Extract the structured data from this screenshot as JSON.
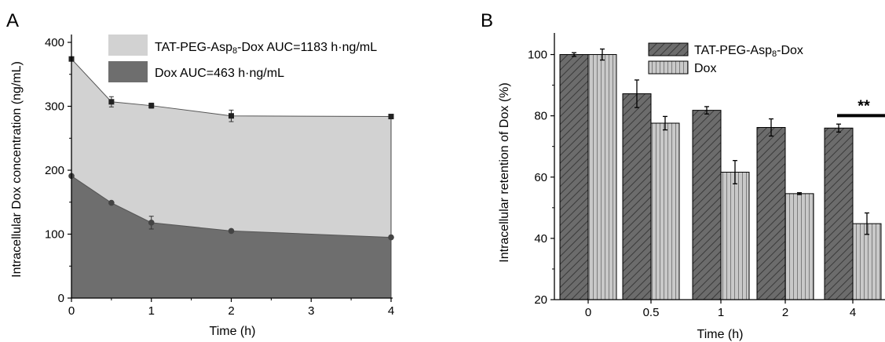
{
  "colors": {
    "area_tat": "#d2d2d2",
    "area_dox": "#6e6e6e",
    "bar_tat": "#6c6c6c",
    "bar_dox": "#c9c9c9",
    "axis": "#000000"
  },
  "chart_data": [
    {
      "panel_label": "A",
      "type": "area",
      "xlabel": "Time (h)",
      "ylabel": "Intracellular Dox concentration (ng/mL)",
      "xlim": [
        0,
        4
      ],
      "ylim": [
        0,
        400
      ],
      "xticks": [
        "0",
        "1",
        "2",
        "3",
        "4"
      ],
      "yticks": [
        "0",
        "100",
        "200",
        "300",
        "400"
      ],
      "x": [
        0,
        0.5,
        1,
        2,
        4
      ],
      "legend_position": "top-center",
      "series": [
        {
          "name": "TAT-PEG-Asp8-Dox",
          "legend_prefix": "TAT-PEG-Asp",
          "legend_sub": "8",
          "legend_suffix": "-Dox  AUC=1183 h·ng/mL",
          "values": [
            374,
            307,
            301,
            285,
            284
          ],
          "errors": [
            0,
            8,
            4,
            9,
            0
          ],
          "marker": "square"
        },
        {
          "name": "Dox",
          "legend_prefix": "Dox  AUC=463 h·ng/mL",
          "legend_sub": "",
          "legend_suffix": "",
          "values": [
            191,
            149,
            118,
            105,
            95
          ],
          "errors": [
            0,
            0,
            10,
            0,
            0
          ],
          "marker": "circle"
        }
      ]
    },
    {
      "panel_label": "B",
      "type": "bar",
      "xlabel": "Time (h)",
      "ylabel": "Intracellular retention of Dox (%)",
      "ylim": [
        20,
        105
      ],
      "yticks": [
        "20",
        "40",
        "60",
        "80",
        "100"
      ],
      "categories": [
        "0",
        "0.5",
        "1",
        "2",
        "4"
      ],
      "legend_position": "top-center",
      "significance": {
        "category": "4",
        "label": "**"
      },
      "series": [
        {
          "name": "TAT-PEG-Asp8-Dox",
          "legend_prefix": "TAT-PEG-Asp",
          "legend_sub": "8",
          "legend_suffix": "-Dox",
          "values": [
            100,
            87.2,
            81.8,
            76.2,
            76.0
          ],
          "errors": [
            0.6,
            4.5,
            1.2,
            2.8,
            1.3
          ],
          "pattern": "hatch-diagonal"
        },
        {
          "name": "Dox",
          "legend_prefix": "Dox",
          "legend_sub": "",
          "legend_suffix": "",
          "values": [
            100,
            77.6,
            61.6,
            54.6,
            44.8
          ],
          "errors": [
            1.8,
            2.2,
            3.8,
            0.3,
            3.5
          ],
          "pattern": "hatch-vertical"
        }
      ]
    }
  ]
}
